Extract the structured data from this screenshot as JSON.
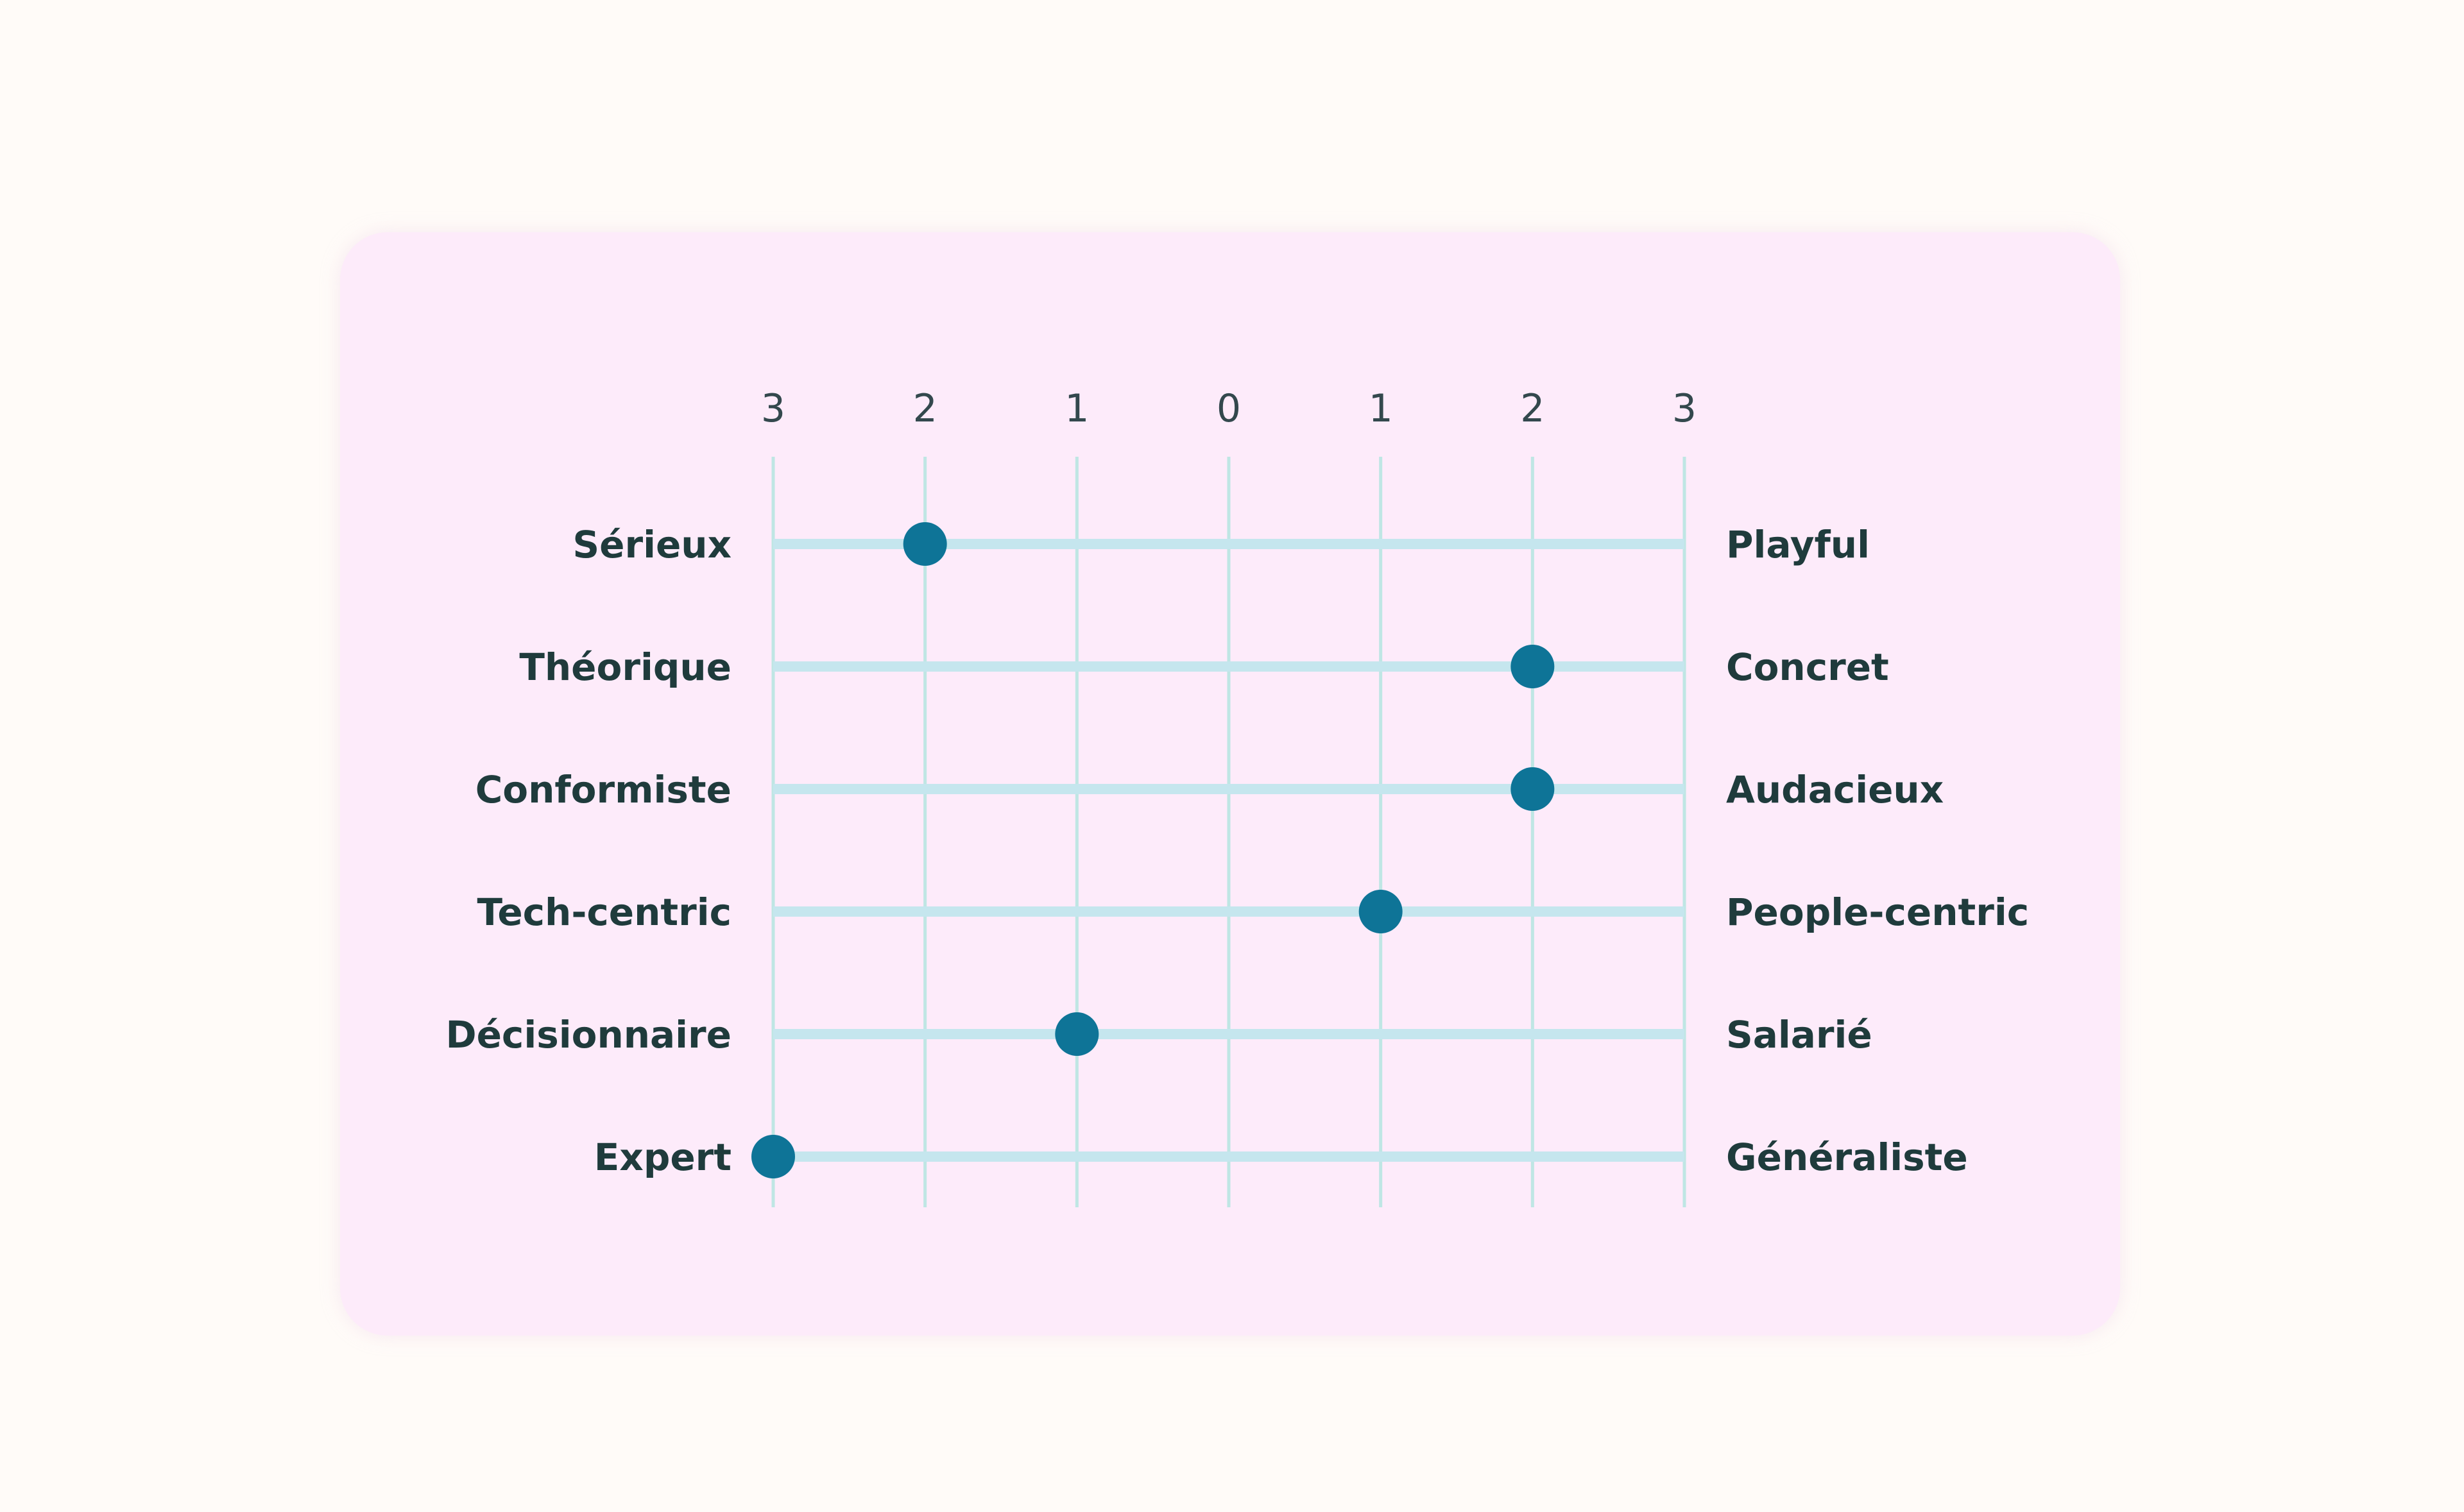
{
  "chart_data": {
    "type": "scatter",
    "x_ticks": [
      "3",
      "2",
      "1",
      "0",
      "1",
      "2",
      "3"
    ],
    "xlim": [
      -3,
      3
    ],
    "grid": true,
    "rows": [
      {
        "left": "Sérieux",
        "right": "Playful",
        "value": -2
      },
      {
        "left": "Théorique",
        "right": "Concret",
        "value": 2
      },
      {
        "left": "Conformiste",
        "right": "Audacieux",
        "value": 2
      },
      {
        "left": "Tech-centric",
        "right": "People-centric",
        "value": 1
      },
      {
        "left": "Décisionnaire",
        "right": "Salarié",
        "value": -1
      },
      {
        "left": "Expert",
        "right": "Généraliste",
        "value": -3
      }
    ]
  },
  "colors": {
    "background": "#fffbf8",
    "card": "#fdebfa",
    "grid": "#bfe6e4",
    "track": "#c5e6ee",
    "dot": "#0e7497",
    "label": "#1f3b3c"
  }
}
